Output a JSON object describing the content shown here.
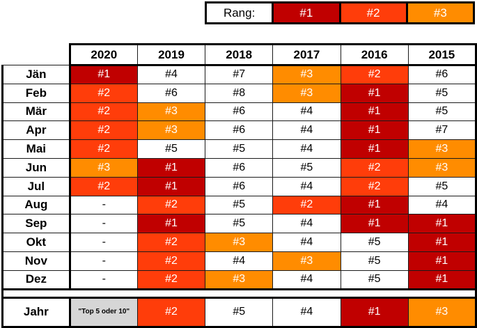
{
  "legend": {
    "label": "Rang:",
    "items": [
      {
        "text": "#1",
        "color": "#c00000"
      },
      {
        "text": "#2",
        "color": "#ff3d0a"
      },
      {
        "text": "#3",
        "color": "#ff8c00"
      }
    ]
  },
  "colors": {
    "rank1": "#c00000",
    "rank2": "#ff3d0a",
    "rank3": "#ff8c00",
    "other": "#ffffff",
    "note": "#d6d6d6"
  },
  "table": {
    "years": [
      "2020",
      "2019",
      "2018",
      "2017",
      "2016",
      "2015"
    ],
    "rows": [
      {
        "label": "Jän",
        "cells": [
          "#1",
          "#4",
          "#7",
          "#3",
          "#2",
          "#6"
        ]
      },
      {
        "label": "Feb",
        "cells": [
          "#2",
          "#6",
          "#8",
          "#3",
          "#1",
          "#5"
        ]
      },
      {
        "label": "Mär",
        "cells": [
          "#2",
          "#3",
          "#6",
          "#4",
          "#1",
          "#5"
        ]
      },
      {
        "label": "Apr",
        "cells": [
          "#2",
          "#3",
          "#6",
          "#4",
          "#1",
          "#7"
        ]
      },
      {
        "label": "Mai",
        "cells": [
          "#2",
          "#5",
          "#5",
          "#4",
          "#1",
          "#3"
        ]
      },
      {
        "label": "Jun",
        "cells": [
          "#3",
          "#1",
          "#6",
          "#5",
          "#2",
          "#3"
        ]
      },
      {
        "label": "Jul",
        "cells": [
          "#2",
          "#1",
          "#6",
          "#4",
          "#2",
          "#5"
        ]
      },
      {
        "label": "Aug",
        "cells": [
          "-",
          "#2",
          "#5",
          "#2",
          "#1",
          "#4"
        ]
      },
      {
        "label": "Sep",
        "cells": [
          "-",
          "#1",
          "#5",
          "#4",
          "#1",
          "#1"
        ]
      },
      {
        "label": "Okt",
        "cells": [
          "-",
          "#2",
          "#3",
          "#4",
          "#5",
          "#1"
        ]
      },
      {
        "label": "Nov",
        "cells": [
          "-",
          "#2",
          "#4",
          "#3",
          "#5",
          "#1"
        ]
      },
      {
        "label": "Dez",
        "cells": [
          "-",
          "#2",
          "#3",
          "#4",
          "#5",
          "#1"
        ]
      }
    ],
    "year_row": {
      "label": "Jahr",
      "cells": [
        "\"Top 5 oder 10\"",
        "#2",
        "#5",
        "#4",
        "#1",
        "#3"
      ]
    }
  }
}
